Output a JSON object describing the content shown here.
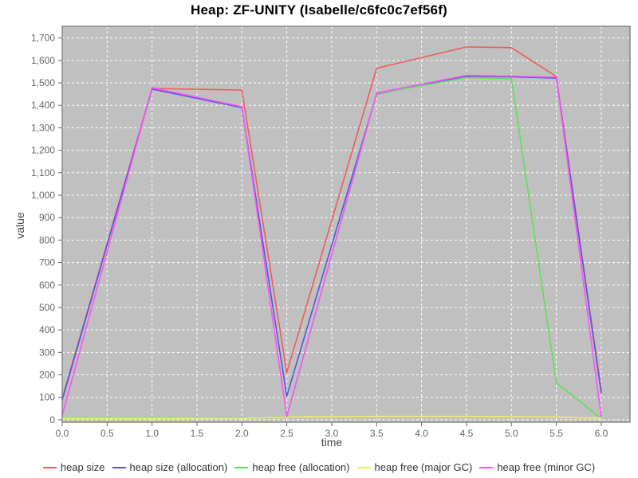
{
  "title": "Heap: ZF-UNITY (Isabelle/c6fc0c7ef56f)",
  "chart_data": {
    "type": "line",
    "title": "Heap: ZF-UNITY (Isabelle/c6fc0c7ef56f)",
    "xlabel": "time",
    "ylabel": "value",
    "xlim": [
      0,
      6.32
    ],
    "ylim": [
      -11,
      1752
    ],
    "grid": true,
    "grid_style": "dashed-white",
    "legend_position": "bottom",
    "colors": {
      "plot_background": "#c0c0c0",
      "grid": "#ffffff",
      "border": "#7a7a7a",
      "tick_text": "#666666",
      "axis_label_text": "#444444",
      "legend_text": "#333333",
      "page_background": "#ffffff"
    },
    "x_ticks": [
      {
        "value": 0.0,
        "label": "0.0"
      },
      {
        "value": 0.5,
        "label": "0.5"
      },
      {
        "value": 1.0,
        "label": "1.0"
      },
      {
        "value": 1.5,
        "label": "1.5"
      },
      {
        "value": 2.0,
        "label": "2.0"
      },
      {
        "value": 2.5,
        "label": "2.5"
      },
      {
        "value": 3.0,
        "label": "3.0"
      },
      {
        "value": 3.5,
        "label": "3.5"
      },
      {
        "value": 4.0,
        "label": "4.0"
      },
      {
        "value": 4.5,
        "label": "4.5"
      },
      {
        "value": 5.0,
        "label": "5.0"
      },
      {
        "value": 5.5,
        "label": "5.5"
      },
      {
        "value": 6.0,
        "label": "6.0"
      }
    ],
    "y_ticks": [
      {
        "value": 0,
        "label": "0"
      },
      {
        "value": 100,
        "label": "100"
      },
      {
        "value": 200,
        "label": "200"
      },
      {
        "value": 300,
        "label": "300"
      },
      {
        "value": 400,
        "label": "400"
      },
      {
        "value": 500,
        "label": "500"
      },
      {
        "value": 600,
        "label": "600"
      },
      {
        "value": 700,
        "label": "700"
      },
      {
        "value": 800,
        "label": "800"
      },
      {
        "value": 900,
        "label": "900"
      },
      {
        "value": 1000,
        "label": "1,000"
      },
      {
        "value": 1100,
        "label": "1,100"
      },
      {
        "value": 1200,
        "label": "1,200"
      },
      {
        "value": 1300,
        "label": "1,300"
      },
      {
        "value": 1400,
        "label": "1,400"
      },
      {
        "value": 1500,
        "label": "1,500"
      },
      {
        "value": 1600,
        "label": "1,600"
      },
      {
        "value": 1700,
        "label": "1,700"
      }
    ],
    "x": [
      0,
      1.0,
      2.0,
      2.5,
      3.5,
      4.5,
      5.0,
      5.5,
      6.0
    ],
    "series": [
      {
        "name": "heap size",
        "color": "#ee5c5c",
        "values": [
          95,
          1475,
          1468,
          210,
          1565,
          1660,
          1657,
          1528,
          130
        ]
      },
      {
        "name": "heap size (allocation)",
        "color": "#5656dd",
        "values": [
          88,
          1472,
          1390,
          105,
          1450,
          1530,
          1527,
          1521,
          120
        ]
      },
      {
        "name": "heap free (allocation)",
        "color": "#5ce05c",
        "values": [
          8,
          8,
          8,
          13,
          1452,
          1524,
          1519,
          165,
          5
        ]
      },
      {
        "name": "heap free (major GC)",
        "color": "#f0ee60",
        "values": [
          6,
          6,
          7,
          12,
          15,
          15,
          14,
          12,
          7
        ]
      },
      {
        "name": "heap free (minor GC)",
        "color": "#fb52fb",
        "values": [
          20,
          1478,
          1394,
          15,
          1455,
          1534,
          1530,
          1525,
          15
        ]
      }
    ]
  }
}
